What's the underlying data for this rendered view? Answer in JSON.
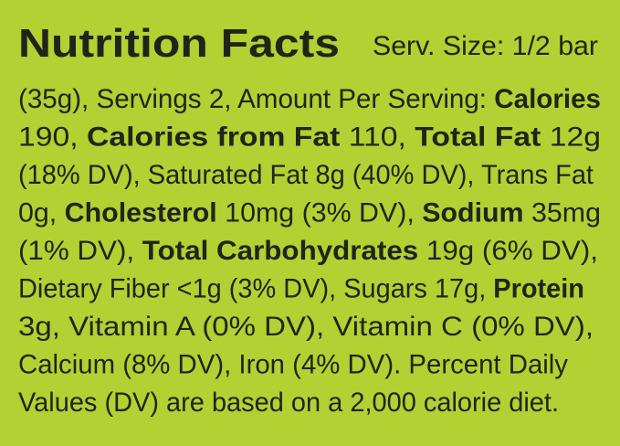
{
  "title": "Nutrition Facts",
  "serving": "Serv. Size: 1/2 bar",
  "lines": [
    [
      {
        "text": "(35g), Servings 2, Amount Per Serving: ",
        "bold": false
      },
      {
        "text": "Calories",
        "bold": true
      }
    ],
    [
      {
        "text": "190, ",
        "bold": false
      },
      {
        "text": "Calories from Fat",
        "bold": true
      },
      {
        "text": " 110, ",
        "bold": false
      },
      {
        "text": "Total Fat",
        "bold": true
      },
      {
        "text": " 12g",
        "bold": false
      }
    ],
    [
      {
        "text": "(18% DV), Saturated Fat 8g (40% DV), Trans Fat",
        "bold": false
      }
    ],
    [
      {
        "text": "0g, ",
        "bold": false
      },
      {
        "text": "Cholesterol",
        "bold": true
      },
      {
        "text": " 10mg (3% DV), ",
        "bold": false
      },
      {
        "text": "Sodium",
        "bold": true
      },
      {
        "text": " 35mg",
        "bold": false
      }
    ],
    [
      {
        "text": "(1% DV), ",
        "bold": false
      },
      {
        "text": "Total Carbohydrates",
        "bold": true
      },
      {
        "text": " 19g (6% DV),",
        "bold": false
      }
    ],
    [
      {
        "text": "Dietary Fiber <1g (3% DV), Sugars 17g, ",
        "bold": false
      },
      {
        "text": "Protein",
        "bold": true
      }
    ],
    [
      {
        "text": "3g, Vitamin A (0% DV), Vitamin C (0% DV),",
        "bold": false
      }
    ],
    [
      {
        "text": "Calcium (8% DV), Iron (4% DV). Percent Daily",
        "bold": false
      }
    ],
    [
      {
        "text": "Values (DV) are based on a 2,000 calorie diet.",
        "bold": false
      }
    ]
  ]
}
